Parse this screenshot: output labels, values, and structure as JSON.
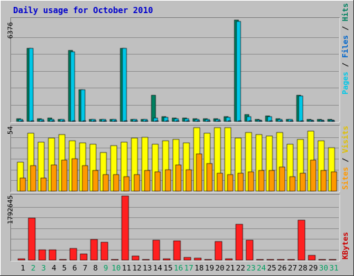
{
  "title": "Daily usage for October 2010",
  "colors": {
    "background": "#C0C0C0",
    "title": "#0000CC",
    "pages": "#00B0B0",
    "files": "#0066CC",
    "hits": "#008060",
    "sites": "#FF9900",
    "visits": "#E0C000",
    "kbytes": "#CC0000",
    "weekend_label": "#00A060"
  },
  "chart_data": [
    {
      "type": "bar",
      "panel": "hits-files-pages",
      "ymax_label": "6376",
      "ylim": [
        0,
        6376
      ],
      "grid": true,
      "legend": {
        "placement": "right-vertical",
        "items": [
          "Pages",
          "Files",
          "Hits"
        ],
        "separator": " / "
      },
      "categories": [
        "1",
        "2",
        "3",
        "4",
        "5",
        "6",
        "7",
        "8",
        "9",
        "10",
        "11",
        "12",
        "13",
        "14",
        "15",
        "16",
        "17",
        "18",
        "19",
        "20",
        "21",
        "22",
        "23",
        "24",
        "25",
        "26",
        "27",
        "28",
        "29",
        "30",
        "31"
      ],
      "series": [
        {
          "name": "Hits",
          "values": [
            180,
            4600,
            170,
            200,
            150,
            4450,
            2000,
            150,
            150,
            150,
            4600,
            150,
            150,
            1650,
            300,
            200,
            200,
            180,
            180,
            180,
            300,
            6376,
            450,
            120,
            350,
            160,
            150,
            1650,
            140,
            140,
            140
          ]
        },
        {
          "name": "Files",
          "values": [
            130,
            4600,
            120,
            150,
            110,
            4400,
            2000,
            110,
            110,
            110,
            4600,
            110,
            110,
            220,
            250,
            160,
            160,
            140,
            140,
            140,
            260,
            6300,
            300,
            90,
            300,
            120,
            110,
            1600,
            100,
            100,
            100
          ]
        },
        {
          "name": "Pages",
          "values": [
            20,
            30,
            15,
            15,
            10,
            30,
            20,
            10,
            10,
            10,
            30,
            10,
            10,
            15,
            20,
            15,
            15,
            15,
            15,
            15,
            20,
            40,
            25,
            10,
            20,
            10,
            10,
            20,
            10,
            10,
            10
          ]
        }
      ]
    },
    {
      "type": "bar",
      "panel": "visits-sites",
      "ymax_label": "54",
      "ylim": [
        0,
        54
      ],
      "grid": true,
      "legend": {
        "placement": "right-vertical",
        "items": [
          "Sites",
          "Visits"
        ],
        "separator": " / "
      },
      "series": [
        {
          "name": "Visits",
          "values": [
            24,
            48,
            41,
            44,
            47,
            42,
            40,
            39,
            32,
            38,
            41,
            44,
            45,
            39,
            42,
            43,
            40,
            53,
            48,
            53,
            53,
            44,
            49,
            47,
            46,
            49,
            39,
            43,
            50,
            42,
            36
          ]
        },
        {
          "name": "Sites",
          "values": [
            11,
            21,
            11,
            22,
            26,
            27,
            21,
            17,
            14,
            14,
            12,
            14,
            17,
            16,
            18,
            22,
            18,
            31,
            23,
            15,
            14,
            15,
            16,
            17,
            17,
            20,
            12,
            15,
            26,
            17,
            16
          ]
        }
      ]
    },
    {
      "type": "bar",
      "panel": "kbytes",
      "ymax_label": "1792645",
      "ylim": [
        0,
        1792645
      ],
      "grid": true,
      "legend": {
        "placement": "right-vertical",
        "items": [
          "KBytes"
        ],
        "separator": ""
      },
      "series": [
        {
          "name": "KBytes",
          "values": [
            40000,
            1180000,
            280000,
            280000,
            20000,
            320000,
            170000,
            580000,
            500000,
            20000,
            1792645,
            120000,
            20000,
            560000,
            30000,
            540000,
            70000,
            60000,
            20000,
            520000,
            30000,
            1000000,
            560000,
            20000,
            20000,
            20000,
            20000,
            1120000,
            140000,
            20000,
            20000
          ]
        }
      ]
    }
  ],
  "x_labels": [
    {
      "label": "1",
      "weekend": false
    },
    {
      "label": "2",
      "weekend": true
    },
    {
      "label": "3",
      "weekend": true
    },
    {
      "label": "4",
      "weekend": false
    },
    {
      "label": "5",
      "weekend": false
    },
    {
      "label": "6",
      "weekend": false
    },
    {
      "label": "7",
      "weekend": false
    },
    {
      "label": "8",
      "weekend": false
    },
    {
      "label": "9",
      "weekend": true
    },
    {
      "label": "10",
      "weekend": true
    },
    {
      "label": "11",
      "weekend": false
    },
    {
      "label": "12",
      "weekend": false
    },
    {
      "label": "13",
      "weekend": false
    },
    {
      "label": "14",
      "weekend": false
    },
    {
      "label": "15",
      "weekend": false
    },
    {
      "label": "16",
      "weekend": true
    },
    {
      "label": "17",
      "weekend": true
    },
    {
      "label": "18",
      "weekend": false
    },
    {
      "label": "19",
      "weekend": false
    },
    {
      "label": "20",
      "weekend": false
    },
    {
      "label": "21",
      "weekend": false
    },
    {
      "label": "22",
      "weekend": false
    },
    {
      "label": "23",
      "weekend": true
    },
    {
      "label": "24",
      "weekend": true
    },
    {
      "label": "25",
      "weekend": false
    },
    {
      "label": "26",
      "weekend": false
    },
    {
      "label": "27",
      "weekend": false
    },
    {
      "label": "28",
      "weekend": false
    },
    {
      "label": "29",
      "weekend": false
    },
    {
      "label": "30",
      "weekend": true
    },
    {
      "label": "31",
      "weekend": true
    }
  ]
}
